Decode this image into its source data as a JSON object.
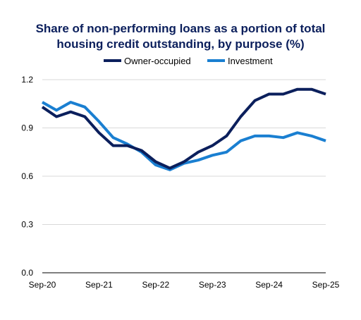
{
  "chart_data": {
    "type": "line",
    "title_line1": "Share of non-performing loans as a portion of total",
    "title_line2": "housing credit outstanding, by purpose (%)",
    "xlabel": "",
    "ylabel": "",
    "ylim": [
      0,
      1.2
    ],
    "yticks": [
      "0.0",
      "0.3",
      "0.6",
      "0.9",
      "1.2"
    ],
    "ytick_values": [
      0,
      0.3,
      0.6,
      0.9,
      1.2
    ],
    "xticks": [
      "Sep-20",
      "Sep-21",
      "Sep-22",
      "Sep-23",
      "Sep-24",
      "Sep-25"
    ],
    "xtick_positions": [
      0,
      4,
      8,
      12,
      16,
      20
    ],
    "x_count": 21,
    "grid": "horizontal",
    "legend_position": "top",
    "series": [
      {
        "name": "Owner-occupied",
        "color": "#0b1f5c",
        "values": [
          1.03,
          0.97,
          1.0,
          0.97,
          0.87,
          0.79,
          0.79,
          0.76,
          0.69,
          0.65,
          0.69,
          0.75,
          0.79,
          0.85,
          0.97,
          1.07,
          1.11,
          1.11,
          1.14,
          1.14,
          1.11
        ]
      },
      {
        "name": "Investment",
        "color": "#1a7fd1",
        "values": [
          1.06,
          1.01,
          1.06,
          1.03,
          0.94,
          0.84,
          0.8,
          0.75,
          0.67,
          0.64,
          0.68,
          0.7,
          0.73,
          0.75,
          0.82,
          0.85,
          0.85,
          0.84,
          0.87,
          0.85,
          0.82
        ]
      }
    ]
  }
}
